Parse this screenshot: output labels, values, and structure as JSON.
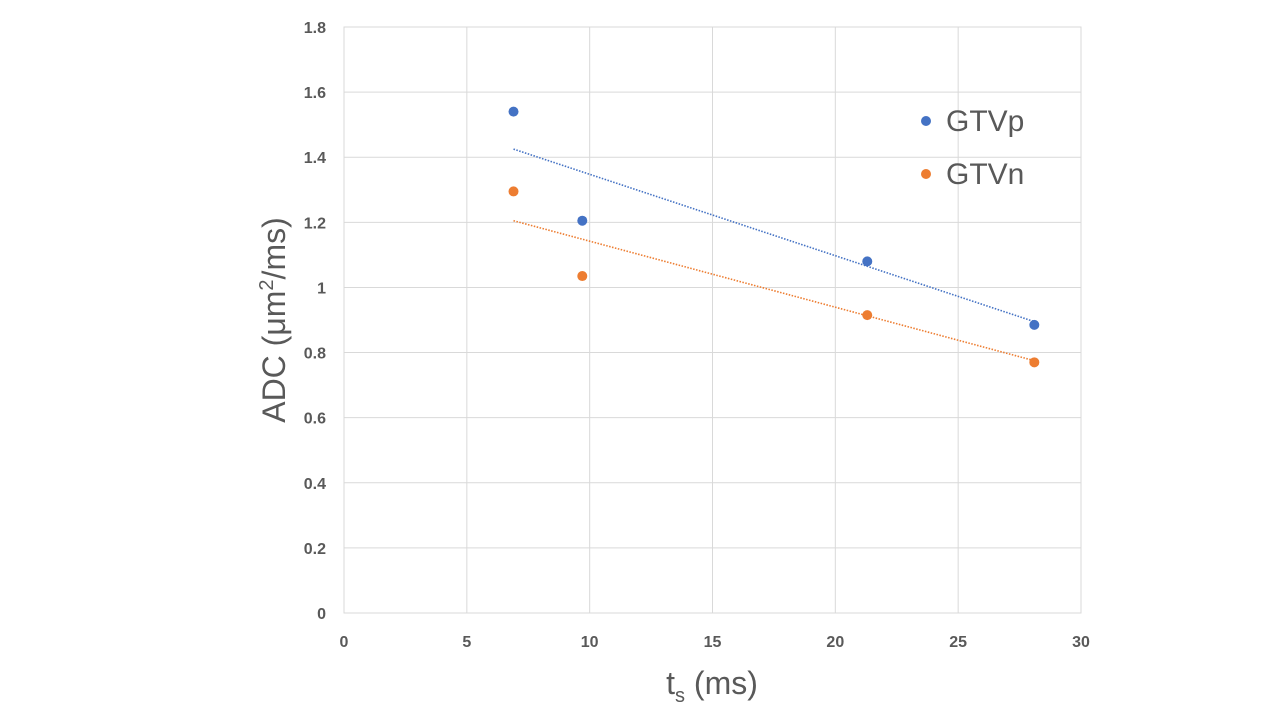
{
  "chart_data": {
    "type": "scatter",
    "title": "",
    "xlabel": {
      "main": "t",
      "sub": "s",
      "rest": " (ms)"
    },
    "ylabel": {
      "pre": "ADC (μm",
      "sup": "2",
      "post": "/ms)"
    },
    "xlim": [
      0,
      30
    ],
    "ylim": [
      0,
      1.8
    ],
    "x_ticks": [
      0,
      5,
      10,
      15,
      20,
      25,
      30
    ],
    "y_ticks": [
      0,
      0.2,
      0.4,
      0.6,
      0.8,
      1,
      1.2,
      1.4,
      1.6,
      1.8
    ],
    "x_tick_labels": [
      "0",
      "5",
      "10",
      "15",
      "20",
      "25",
      "30"
    ],
    "y_tick_labels": [
      "0",
      "0.2",
      "0.4",
      "0.6",
      "0.8",
      "1",
      "1.2",
      "1.4",
      "1.6",
      "1.8"
    ],
    "grid": true,
    "legend_position": "top-right",
    "series": [
      {
        "name": "GTVp",
        "color": "#4472C4",
        "x": [
          6.9,
          9.7,
          21.3,
          28.1
        ],
        "y": [
          1.54,
          1.205,
          1.08,
          0.885
        ],
        "trendline": {
          "type": "dotted",
          "x": [
            6.9,
            28.1
          ],
          "y": [
            1.425,
            0.895
          ]
        }
      },
      {
        "name": "GTVn",
        "color": "#ED7D31",
        "x": [
          6.9,
          9.7,
          21.3,
          28.1
        ],
        "y": [
          1.295,
          1.035,
          0.915,
          0.77
        ],
        "trendline": {
          "type": "dotted",
          "x": [
            6.9,
            28.1
          ],
          "y": [
            1.205,
            0.775
          ]
        }
      }
    ]
  }
}
